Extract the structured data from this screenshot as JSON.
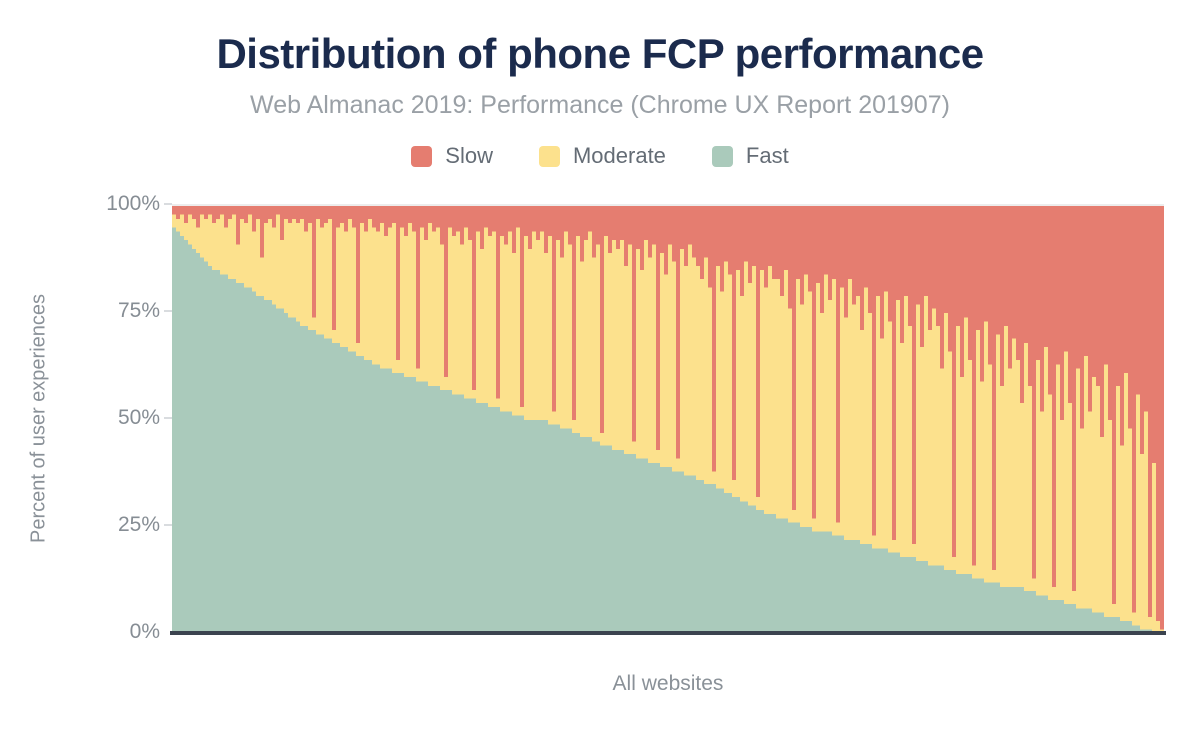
{
  "header": {
    "title": "Distribution of phone FCP performance",
    "subtitle": "Web Almanac 2019: Performance (Chrome UX Report 201907)"
  },
  "legend": [
    {
      "label": "Slow",
      "color": "#e57d70"
    },
    {
      "label": "Moderate",
      "color": "#fce18d"
    },
    {
      "label": "Fast",
      "color": "#aacabb"
    }
  ],
  "axes": {
    "y_title": "Percent of user experiences",
    "x_title": "All websites",
    "y_ticks": {
      "t100": "100%",
      "t75": "75%",
      "t50": "50%",
      "t25": "25%",
      "t0": "0%"
    }
  },
  "colors": {
    "slow": "#e57d70",
    "moderate": "#fce18d",
    "fast": "#aacabb",
    "title": "#1b2b4d",
    "subtitle": "#9aa0a6",
    "axis_text": "#868d94",
    "axis_line": "#3b434f"
  },
  "chart_data": {
    "type": "bar",
    "variant": "stacked-100-percent, one thin bar per website, sorted by fast% descending",
    "title": "Distribution of phone FCP performance",
    "subtitle": "Web Almanac 2019: Performance (Chrome UX Report 201907)",
    "xlabel": "All websites",
    "ylabel": "Percent of user experiences",
    "ylim": [
      0,
      100
    ],
    "y_tick_labels": [
      "0%",
      "25%",
      "50%",
      "75%",
      "100%"
    ],
    "grid": false,
    "legend_position": "top",
    "stack_order_top_to_bottom": [
      "slow",
      "moderate",
      "fast"
    ],
    "n_bars": 248,
    "moderate_rule": "moderate = 100 - fast - slow (each bar totals 100%)",
    "series": {
      "fast": [
        95,
        94,
        93,
        92,
        91,
        90,
        89,
        88,
        87,
        86,
        85,
        85,
        84,
        84,
        83,
        83,
        82,
        82,
        81,
        81,
        80,
        79,
        79,
        78,
        78,
        77,
        76,
        76,
        75,
        74,
        74,
        73,
        72,
        72,
        71,
        71,
        70,
        70,
        69,
        69,
        68,
        68,
        67,
        67,
        66,
        66,
        65,
        65,
        64,
        64,
        63,
        63,
        62,
        62,
        62,
        61,
        61,
        61,
        60,
        60,
        60,
        59,
        59,
        59,
        58,
        58,
        58,
        57,
        57,
        57,
        56,
        56,
        56,
        55,
        55,
        55,
        54,
        54,
        54,
        53,
        53,
        53,
        52,
        52,
        52,
        51,
        51,
        51,
        50,
        50,
        50,
        50,
        50,
        50,
        49,
        49,
        49,
        48,
        48,
        48,
        47,
        47,
        46,
        46,
        46,
        45,
        45,
        44,
        44,
        44,
        43,
        43,
        43,
        42,
        42,
        42,
        41,
        41,
        41,
        40,
        40,
        40,
        39,
        39,
        39,
        38,
        38,
        38,
        37,
        37,
        37,
        36,
        36,
        35,
        35,
        35,
        34,
        34,
        33,
        33,
        32,
        32,
        31,
        31,
        30,
        30,
        29,
        29,
        28,
        28,
        28,
        27,
        27,
        27,
        26,
        26,
        26,
        25,
        25,
        25,
        24,
        24,
        24,
        24,
        24,
        23,
        23,
        23,
        22,
        22,
        22,
        22,
        21,
        21,
        21,
        20,
        20,
        20,
        20,
        19,
        19,
        19,
        18,
        18,
        18,
        18,
        17,
        17,
        17,
        16,
        16,
        16,
        16,
        15,
        15,
        15,
        14,
        14,
        14,
        14,
        13,
        13,
        13,
        12,
        12,
        12,
        12,
        11,
        11,
        11,
        11,
        11,
        11,
        10,
        10,
        10,
        9,
        9,
        9,
        8,
        8,
        8,
        8,
        7,
        7,
        7,
        6,
        6,
        6,
        6,
        5,
        5,
        5,
        4,
        4,
        4,
        4,
        3,
        3,
        3,
        2,
        2,
        1,
        1,
        1,
        0,
        0,
        0
      ],
      "slow": [
        2,
        3,
        2,
        4,
        2,
        3,
        5,
        2,
        3,
        2,
        4,
        3,
        2,
        5,
        3,
        2,
        9,
        3,
        4,
        2,
        6,
        3,
        12,
        4,
        3,
        5,
        2,
        8,
        3,
        4,
        3,
        4,
        3,
        6,
        4,
        26,
        3,
        5,
        4,
        3,
        29,
        5,
        4,
        6,
        3,
        5,
        32,
        4,
        6,
        3,
        5,
        6,
        4,
        7,
        5,
        4,
        36,
        5,
        7,
        4,
        6,
        38,
        5,
        8,
        4,
        6,
        5,
        9,
        40,
        5,
        7,
        6,
        9,
        5,
        8,
        43,
        6,
        10,
        5,
        7,
        6,
        45,
        7,
        9,
        6,
        11,
        5,
        47,
        7,
        10,
        6,
        8,
        6,
        11,
        7,
        48,
        8,
        12,
        6,
        9,
        50,
        7,
        13,
        8,
        6,
        12,
        9,
        53,
        7,
        11,
        8,
        10,
        8,
        14,
        9,
        55,
        10,
        15,
        8,
        12,
        9,
        57,
        11,
        16,
        9,
        13,
        59,
        10,
        14,
        9,
        12,
        14,
        17,
        12,
        19,
        62,
        14,
        20,
        13,
        16,
        64,
        15,
        21,
        13,
        18,
        14,
        68,
        15,
        19,
        14,
        17,
        17,
        21,
        15,
        24,
        71,
        17,
        23,
        16,
        20,
        73,
        18,
        25,
        16,
        22,
        17,
        74,
        19,
        26,
        17,
        23,
        21,
        29,
        19,
        25,
        77,
        21,
        31,
        20,
        27,
        78,
        22,
        32,
        21,
        28,
        79,
        23,
        33,
        21,
        29,
        24,
        28,
        38,
        25,
        34,
        82,
        28,
        40,
        26,
        36,
        84,
        29,
        41,
        27,
        37,
        85,
        30,
        42,
        28,
        38,
        31,
        36,
        46,
        32,
        42,
        87,
        36,
        48,
        33,
        44,
        89,
        37,
        50,
        34,
        46,
        90,
        38,
        52,
        35,
        48,
        40,
        42,
        54,
        37,
        50,
        93,
        42,
        56,
        39,
        52,
        95,
        44,
        58,
        48,
        96,
        60,
        97,
        99
      ]
    }
  }
}
